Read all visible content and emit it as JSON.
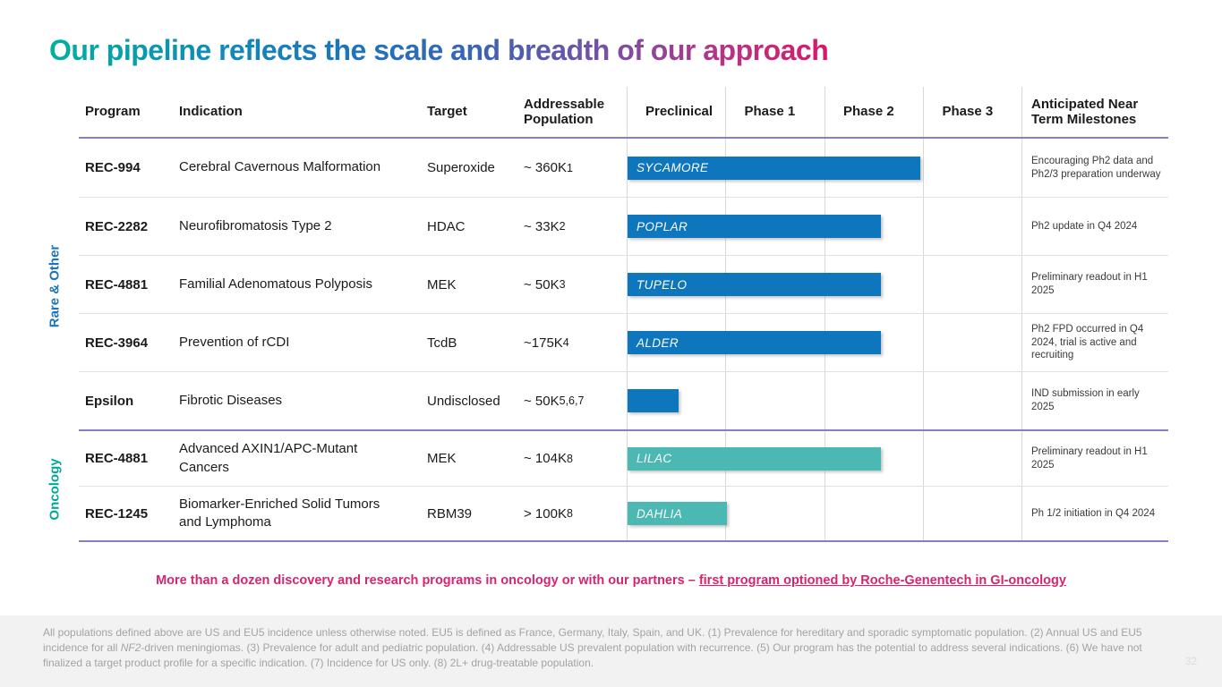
{
  "title": "Our pipeline reflects the scale and breadth of our approach",
  "header": {
    "program": "Program",
    "indication": "Indication",
    "target": "Target",
    "population": "Addressable Population",
    "preclinical": "Preclinical",
    "phase1": "Phase 1",
    "phase2": "Phase 2",
    "phase3": "Phase 3",
    "milestones": "Anticipated Near Term Milestones"
  },
  "sections": [
    {
      "label": "Rare & Other",
      "color": "#1b75bc",
      "rows": [
        {
          "program": "REC-994",
          "indication": "Cerebral Cavernous Malformation",
          "target": "Superoxide",
          "population": "~ 360K",
          "population_sup": "1",
          "bar": {
            "label": "SYCAMORE",
            "color": "#0e76bc",
            "width_pct": 74
          },
          "milestone": "Encouraging Ph2 data and Ph2/3 preparation underway"
        },
        {
          "program": "REC-2282",
          "indication": "Neurofibromatosis Type 2",
          "target": "HDAC",
          "population": "~ 33K",
          "population_sup": "2",
          "bar": {
            "label": "POPLAR",
            "color": "#0e76bc",
            "width_pct": 64
          },
          "milestone": "Ph2 update in Q4 2024"
        },
        {
          "program": "REC-4881",
          "indication": "Familial Adenomatous Polyposis",
          "target": "MEK",
          "population": "~ 50K",
          "population_sup": "3",
          "bar": {
            "label": "TUPELO",
            "color": "#0e76bc",
            "width_pct": 64
          },
          "milestone": "Preliminary readout in H1 2025"
        },
        {
          "program": "REC-3964",
          "indication": "Prevention of rCDI",
          "target": "TcdB",
          "population": "~175K",
          "population_sup": "4",
          "bar": {
            "label": "ALDER",
            "color": "#0e76bc",
            "width_pct": 64
          },
          "milestone": "Ph2 FPD occurred in Q4 2024, trial is active and recruiting"
        },
        {
          "program": "Epsilon",
          "indication": "Fibrotic Diseases",
          "target": "Undisclosed",
          "population": "~ 50K",
          "population_sup": "5,6,7",
          "bar": {
            "label": "",
            "color": "#0e76bc",
            "width_pct": 13
          },
          "milestone": "IND submission in early 2025"
        }
      ]
    },
    {
      "label": "Oncology",
      "color": "#00a79d",
      "rows": [
        {
          "program": "REC-4881",
          "indication": "Advanced AXIN1/APC-Mutant Cancers",
          "target": "MEK",
          "population": "~ 104K",
          "population_sup": "8",
          "bar": {
            "label": "LILAC",
            "color": "#4bb8b4",
            "width_pct": 64
          },
          "milestone": "Preliminary readout in H1 2025"
        },
        {
          "program": "REC-1245",
          "indication": "Biomarker-Enriched Solid Tumors and Lymphoma",
          "target": "RBM39",
          "population": "> 100K",
          "population_sup": "8",
          "bar": {
            "label": "DAHLIA",
            "color": "#4bb8b4",
            "width_pct": 25
          },
          "milestone": "Ph 1/2 initiation in Q4 2024"
        }
      ]
    }
  ],
  "banner": {
    "text": "More than a dozen discovery and research programs in oncology or with our partners – ",
    "underlined": "first program optioned by Roche-Genentech in GI-oncology",
    "color": "#d6246e"
  },
  "footnote": {
    "part1": "All populations defined above are US and EU5 incidence unless otherwise noted. EU5 is defined as France, Germany, Italy, Spain, and UK. (1) Prevalence for hereditary and sporadic symptomatic population. (2) Annual US and EU5 incidence for all ",
    "nf2": "NF2",
    "part2": "-driven meningiomas. (3) Prevalence for adult and pediatric population. (4) Addressable US prevalent population with recurrence. (5) Our program has the potential to address several indications. (6) We have not finalized a target product profile for a specific indication. (7) Incidence for US only. (8) 2L+ drug-treatable population."
  },
  "page_number": "32"
}
